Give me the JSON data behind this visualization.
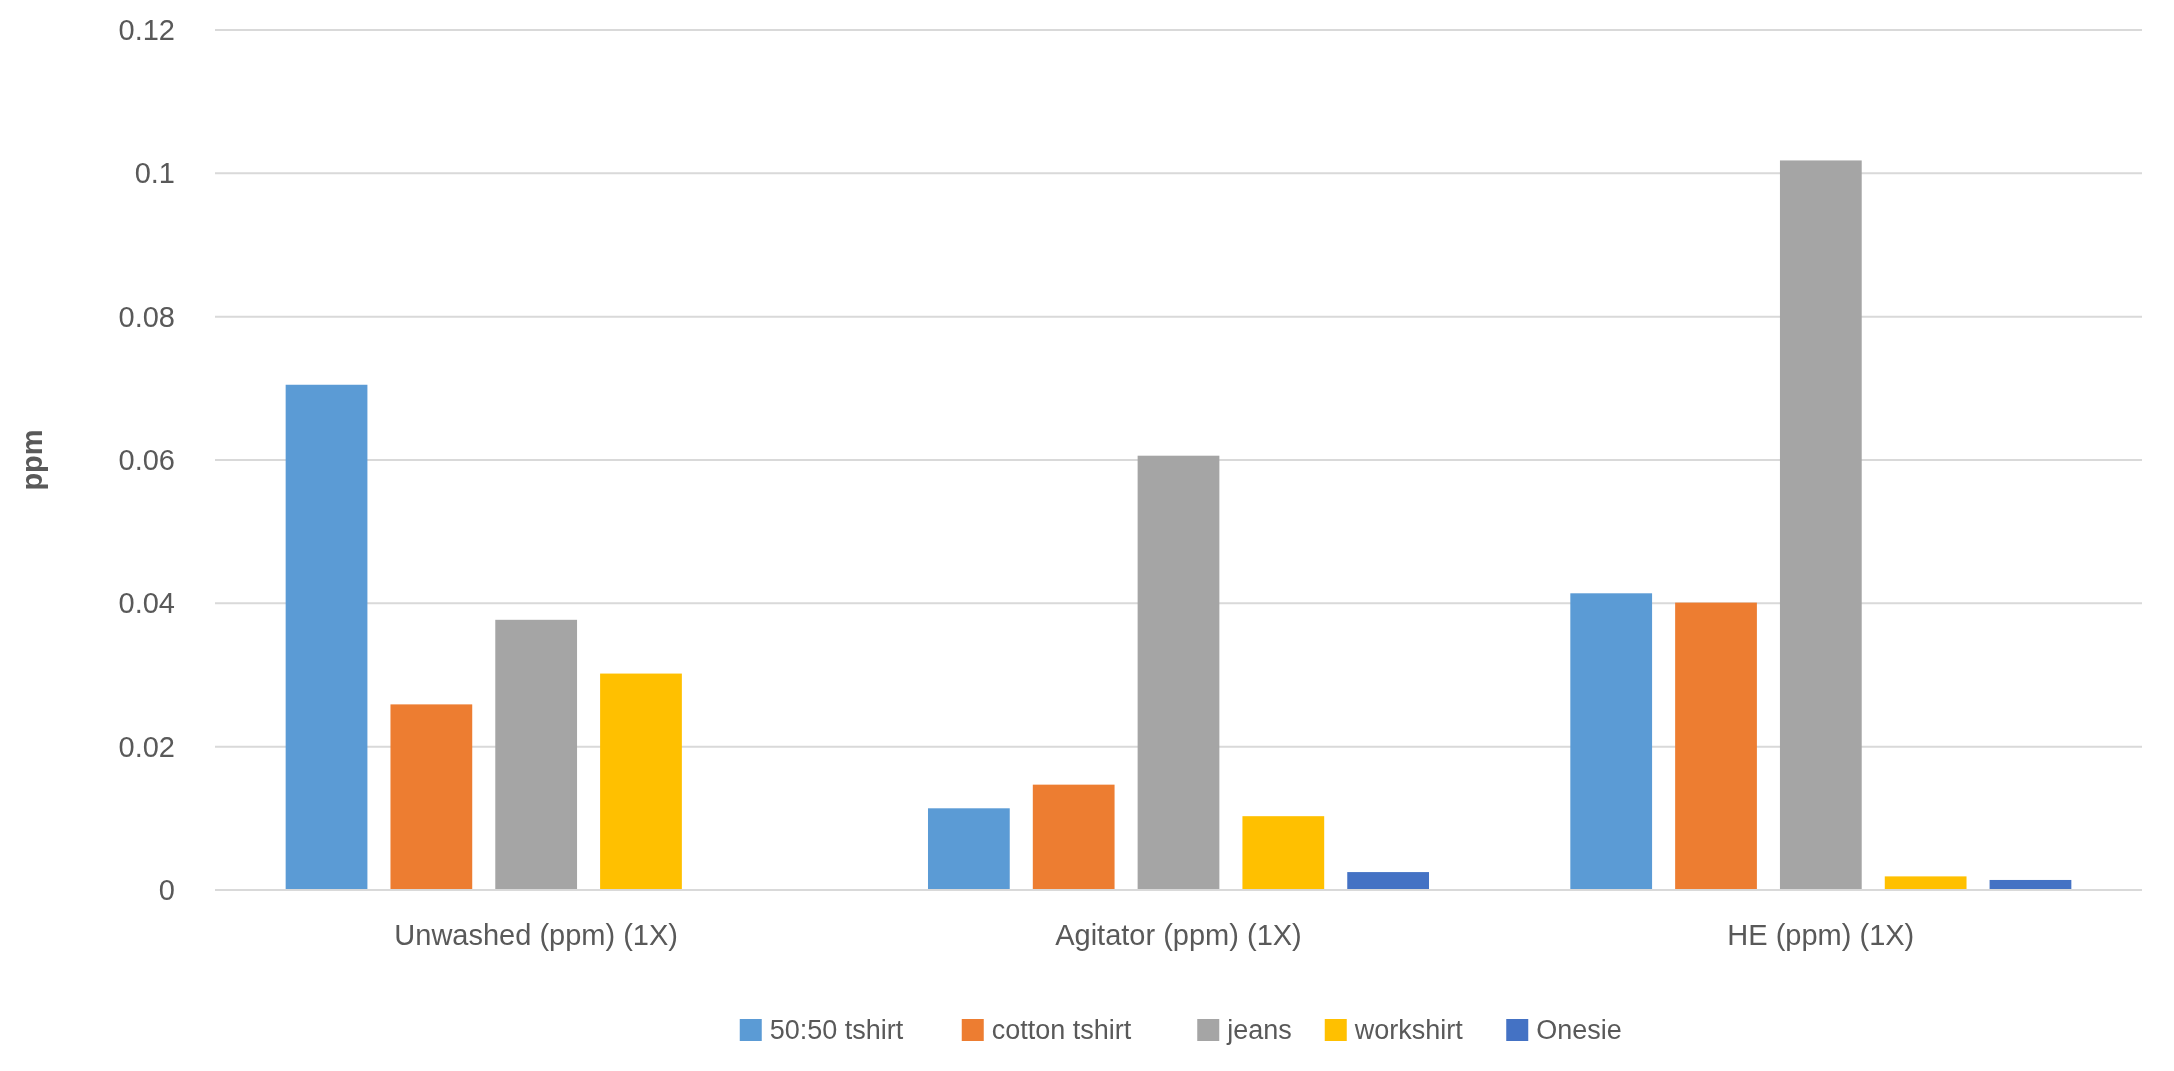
{
  "chart_data": {
    "type": "bar",
    "ylabel": "ppm",
    "categories": [
      "Unwashed (ppm) (1X)",
      "Agitator (ppm) (1X)",
      "HE (ppm) (1X)"
    ],
    "series": [
      {
        "name": "50:50 tshirt",
        "color": "#5b9bd5",
        "values": [
          0.0705,
          0.0114,
          0.0414
        ]
      },
      {
        "name": "cotton tshirt",
        "color": "#ed7d31",
        "values": [
          0.0259,
          0.0147,
          0.0401
        ]
      },
      {
        "name": "jeans",
        "color": "#a5a5a5",
        "values": [
          0.0377,
          0.0606,
          0.1018
        ]
      },
      {
        "name": "workshirt",
        "color": "#ffc000",
        "values": [
          0.0302,
          0.0103,
          0.0019
        ]
      },
      {
        "name": "Onesie",
        "color": "#4472c4",
        "values": [
          0,
          0.0025,
          0.0014
        ]
      }
    ],
    "ylim": [
      0,
      0.12
    ],
    "yticks": [
      0,
      0.02,
      0.04,
      0.06,
      0.08,
      0.1,
      0.12
    ],
    "grid": "y",
    "legend": "bottom"
  }
}
